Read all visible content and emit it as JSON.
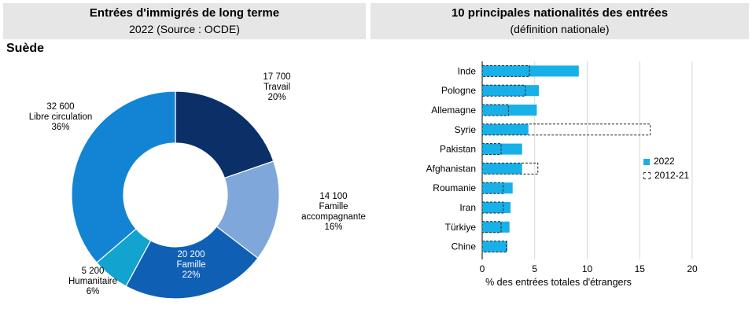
{
  "left_panel": {
    "title": "Entrées d'immigrés de long terme",
    "subtitle": "2022 (Source : OCDE)",
    "country": "Suède"
  },
  "right_panel": {
    "title": "10 principales nationalités des entrées",
    "subtitle": "(définition nationale)"
  },
  "colors": {
    "travail": "#0b2f67",
    "famille_accompagnante": "#7fa7d9",
    "famille": "#0f5fb5",
    "humanitaire": "#13a3cf",
    "libre_circulation": "#1384d3",
    "bar_2022": "#18b0e8"
  },
  "chart_data": [
    {
      "type": "pie",
      "donut": true,
      "slices": [
        {
          "value_label": "17 700",
          "name": "Travail",
          "pct_label": "20%",
          "value": 17700,
          "pct": 20
        },
        {
          "value_label": "14 100",
          "name": "Famille accompagnante",
          "name_lines": [
            "Famille",
            "accompagnante"
          ],
          "pct_label": "16%",
          "value": 14100,
          "pct": 16
        },
        {
          "value_label": "20 200",
          "name": "Famille",
          "pct_label": "22%",
          "value": 20200,
          "pct": 22
        },
        {
          "value_label": "5 200",
          "name": "Humanitaire",
          "pct_label": "6%",
          "value": 5200,
          "pct": 6
        },
        {
          "value_label": "32 600",
          "name": "Libre circulation",
          "pct_label": "36%",
          "value": 32600,
          "pct": 36
        }
      ]
    },
    {
      "type": "bar",
      "orientation": "horizontal",
      "categories": [
        "Inde",
        "Pologne",
        "Allemagne",
        "Syrie",
        "Pakistan",
        "Afghanistan",
        "Roumanie",
        "Iran",
        "Türkiye",
        "Chine"
      ],
      "series": [
        {
          "name": "2022",
          "values": [
            9.2,
            5.4,
            5.2,
            4.4,
            3.8,
            3.8,
            2.9,
            2.7,
            2.6,
            2.4
          ]
        },
        {
          "name": "2012-21",
          "values": [
            4.5,
            4.1,
            2.5,
            16.0,
            1.8,
            5.3,
            2.0,
            2.0,
            1.8,
            2.3
          ]
        }
      ],
      "xlabel": "% des entrées totales d'étrangers",
      "xlim": [
        0,
        20
      ],
      "xticks": [
        "0",
        "5",
        "10",
        "15",
        "20"
      ],
      "grid": true,
      "legend_position": "right"
    }
  ]
}
